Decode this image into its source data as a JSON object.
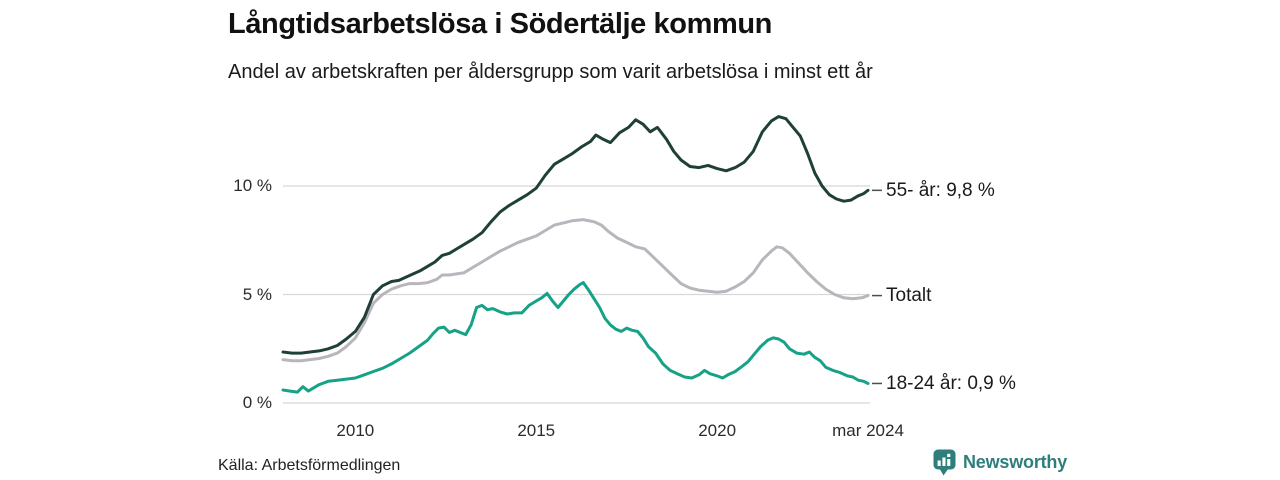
{
  "footer": {
    "source": "Källa: Arbetsförmedlingen",
    "brand": "Newsworthy",
    "logo_icon": "newsworthy-bars-bubble-icon"
  },
  "colors": {
    "grid": "#d8d8d8",
    "leader_dash": "#4d4d4d",
    "text": "#1a1a1a",
    "brand_teal": "#2e7e7c",
    "series_55": "#1f4038",
    "series_total": "#b8b6bc",
    "series_18_24": "#16a287"
  },
  "chart_data": {
    "type": "line",
    "title": "Långtidsarbetslösa i Södertälje kommun",
    "subtitle": "Andel av arbetskraften per åldersgrupp som varit arbetslösa i minst ett år",
    "legend_position": "right-end-labels",
    "x_axis": {
      "range": [
        2008,
        2024.17
      ],
      "ticks": [
        {
          "x": 2010,
          "label": "2010"
        },
        {
          "x": 2015,
          "label": "2015"
        },
        {
          "x": 2020,
          "label": "2020"
        },
        {
          "x": 2024.17,
          "label": "mar 2024"
        }
      ]
    },
    "y_axis": {
      "unit": "%",
      "range": [
        0,
        13.5
      ],
      "grid": true,
      "ticks": [
        {
          "v": 0,
          "label": "0 %"
        },
        {
          "v": 5,
          "label": "5 %"
        },
        {
          "v": 10,
          "label": "10 %"
        }
      ]
    },
    "series": [
      {
        "name": "Totalt",
        "end_label": "Totalt",
        "color": "#b8b6bc",
        "points": [
          [
            2008,
            2.0
          ],
          [
            2008.25,
            1.95
          ],
          [
            2008.5,
            1.95
          ],
          [
            2008.75,
            2.0
          ],
          [
            2009,
            2.05
          ],
          [
            2009.25,
            2.15
          ],
          [
            2009.5,
            2.3
          ],
          [
            2009.75,
            2.6
          ],
          [
            2010,
            3.0
          ],
          [
            2010.25,
            3.7
          ],
          [
            2010.5,
            4.6
          ],
          [
            2010.75,
            5.0
          ],
          [
            2011,
            5.25
          ],
          [
            2011.25,
            5.4
          ],
          [
            2011.5,
            5.5
          ],
          [
            2011.75,
            5.5
          ],
          [
            2012,
            5.55
          ],
          [
            2012.25,
            5.7
          ],
          [
            2012.4,
            5.9
          ],
          [
            2012.6,
            5.9
          ],
          [
            2012.8,
            5.95
          ],
          [
            2013,
            6.0
          ],
          [
            2013.25,
            6.25
          ],
          [
            2013.5,
            6.5
          ],
          [
            2013.75,
            6.75
          ],
          [
            2014,
            7.0
          ],
          [
            2014.25,
            7.2
          ],
          [
            2014.5,
            7.4
          ],
          [
            2014.75,
            7.55
          ],
          [
            2015,
            7.7
          ],
          [
            2015.25,
            7.95
          ],
          [
            2015.5,
            8.2
          ],
          [
            2015.75,
            8.3
          ],
          [
            2016,
            8.4
          ],
          [
            2016.3,
            8.45
          ],
          [
            2016.6,
            8.35
          ],
          [
            2016.8,
            8.2
          ],
          [
            2017,
            7.9
          ],
          [
            2017.25,
            7.6
          ],
          [
            2017.5,
            7.4
          ],
          [
            2017.75,
            7.2
          ],
          [
            2018,
            7.1
          ],
          [
            2018.25,
            6.7
          ],
          [
            2018.5,
            6.3
          ],
          [
            2018.75,
            5.9
          ],
          [
            2019,
            5.5
          ],
          [
            2019.25,
            5.3
          ],
          [
            2019.5,
            5.2
          ],
          [
            2019.75,
            5.15
          ],
          [
            2020,
            5.1
          ],
          [
            2020.25,
            5.15
          ],
          [
            2020.5,
            5.35
          ],
          [
            2020.75,
            5.6
          ],
          [
            2021,
            6.0
          ],
          [
            2021.25,
            6.6
          ],
          [
            2021.5,
            7.0
          ],
          [
            2021.65,
            7.2
          ],
          [
            2021.8,
            7.15
          ],
          [
            2022,
            6.9
          ],
          [
            2022.25,
            6.45
          ],
          [
            2022.5,
            6.0
          ],
          [
            2022.75,
            5.6
          ],
          [
            2023,
            5.25
          ],
          [
            2023.25,
            5.0
          ],
          [
            2023.5,
            4.85
          ],
          [
            2023.75,
            4.8
          ],
          [
            2024,
            4.85
          ],
          [
            2024.17,
            4.95
          ]
        ]
      },
      {
        "name": "18-24 år",
        "end_label": "18-24 år: 0,9 %",
        "last_value": 0.9,
        "color": "#16a287",
        "points": [
          [
            2008,
            0.6
          ],
          [
            2008.2,
            0.55
          ],
          [
            2008.4,
            0.5
          ],
          [
            2008.55,
            0.75
          ],
          [
            2008.7,
            0.55
          ],
          [
            2009,
            0.85
          ],
          [
            2009.25,
            1.0
          ],
          [
            2009.5,
            1.05
          ],
          [
            2009.75,
            1.1
          ],
          [
            2010,
            1.15
          ],
          [
            2010.25,
            1.3
          ],
          [
            2010.5,
            1.45
          ],
          [
            2010.75,
            1.6
          ],
          [
            2011,
            1.8
          ],
          [
            2011.25,
            2.05
          ],
          [
            2011.5,
            2.3
          ],
          [
            2011.75,
            2.6
          ],
          [
            2012,
            2.9
          ],
          [
            2012.15,
            3.2
          ],
          [
            2012.3,
            3.45
          ],
          [
            2012.45,
            3.5
          ],
          [
            2012.6,
            3.25
          ],
          [
            2012.75,
            3.35
          ],
          [
            2012.9,
            3.25
          ],
          [
            2013.05,
            3.15
          ],
          [
            2013.2,
            3.6
          ],
          [
            2013.35,
            4.4
          ],
          [
            2013.5,
            4.5
          ],
          [
            2013.65,
            4.3
          ],
          [
            2013.8,
            4.35
          ],
          [
            2014,
            4.2
          ],
          [
            2014.2,
            4.1
          ],
          [
            2014.4,
            4.15
          ],
          [
            2014.6,
            4.15
          ],
          [
            2014.8,
            4.5
          ],
          [
            2015,
            4.7
          ],
          [
            2015.15,
            4.85
          ],
          [
            2015.3,
            5.05
          ],
          [
            2015.45,
            4.7
          ],
          [
            2015.6,
            4.4
          ],
          [
            2015.75,
            4.7
          ],
          [
            2015.9,
            5.0
          ],
          [
            2016.05,
            5.25
          ],
          [
            2016.2,
            5.45
          ],
          [
            2016.3,
            5.55
          ],
          [
            2016.45,
            5.2
          ],
          [
            2016.6,
            4.8
          ],
          [
            2016.75,
            4.4
          ],
          [
            2016.9,
            3.9
          ],
          [
            2017.05,
            3.6
          ],
          [
            2017.2,
            3.4
          ],
          [
            2017.35,
            3.3
          ],
          [
            2017.5,
            3.45
          ],
          [
            2017.65,
            3.35
          ],
          [
            2017.8,
            3.3
          ],
          [
            2017.95,
            3.0
          ],
          [
            2018.1,
            2.6
          ],
          [
            2018.3,
            2.3
          ],
          [
            2018.5,
            1.8
          ],
          [
            2018.7,
            1.5
          ],
          [
            2018.9,
            1.35
          ],
          [
            2019.1,
            1.2
          ],
          [
            2019.3,
            1.15
          ],
          [
            2019.5,
            1.3
          ],
          [
            2019.65,
            1.5
          ],
          [
            2019.8,
            1.35
          ],
          [
            2020,
            1.25
          ],
          [
            2020.15,
            1.15
          ],
          [
            2020.3,
            1.3
          ],
          [
            2020.5,
            1.45
          ],
          [
            2020.7,
            1.7
          ],
          [
            2020.85,
            1.9
          ],
          [
            2021,
            2.2
          ],
          [
            2021.2,
            2.6
          ],
          [
            2021.4,
            2.9
          ],
          [
            2021.55,
            3.0
          ],
          [
            2021.7,
            2.95
          ],
          [
            2021.85,
            2.8
          ],
          [
            2022,
            2.5
          ],
          [
            2022.2,
            2.3
          ],
          [
            2022.4,
            2.25
          ],
          [
            2022.55,
            2.35
          ],
          [
            2022.7,
            2.1
          ],
          [
            2022.85,
            1.95
          ],
          [
            2023,
            1.65
          ],
          [
            2023.2,
            1.5
          ],
          [
            2023.4,
            1.4
          ],
          [
            2023.6,
            1.25
          ],
          [
            2023.75,
            1.2
          ],
          [
            2023.9,
            1.05
          ],
          [
            2024.05,
            1.0
          ],
          [
            2024.17,
            0.9
          ]
        ]
      },
      {
        "name": "55- år",
        "end_label": "55- år: 9,8 %",
        "last_value": 9.8,
        "color": "#1f4038",
        "points": [
          [
            2008,
            2.35
          ],
          [
            2008.25,
            2.3
          ],
          [
            2008.5,
            2.3
          ],
          [
            2008.75,
            2.35
          ],
          [
            2009,
            2.4
          ],
          [
            2009.25,
            2.5
          ],
          [
            2009.5,
            2.65
          ],
          [
            2009.75,
            2.95
          ],
          [
            2010,
            3.3
          ],
          [
            2010.25,
            3.95
          ],
          [
            2010.5,
            5.0
          ],
          [
            2010.75,
            5.4
          ],
          [
            2011,
            5.6
          ],
          [
            2011.2,
            5.65
          ],
          [
            2011.4,
            5.8
          ],
          [
            2011.6,
            5.95
          ],
          [
            2011.8,
            6.1
          ],
          [
            2012,
            6.3
          ],
          [
            2012.2,
            6.5
          ],
          [
            2012.4,
            6.8
          ],
          [
            2012.6,
            6.9
          ],
          [
            2012.8,
            7.1
          ],
          [
            2013,
            7.3
          ],
          [
            2013.25,
            7.55
          ],
          [
            2013.5,
            7.85
          ],
          [
            2013.75,
            8.35
          ],
          [
            2014,
            8.8
          ],
          [
            2014.25,
            9.1
          ],
          [
            2014.5,
            9.35
          ],
          [
            2014.75,
            9.6
          ],
          [
            2015,
            9.9
          ],
          [
            2015.25,
            10.5
          ],
          [
            2015.5,
            11.0
          ],
          [
            2015.75,
            11.25
          ],
          [
            2016,
            11.5
          ],
          [
            2016.25,
            11.8
          ],
          [
            2016.5,
            12.05
          ],
          [
            2016.65,
            12.35
          ],
          [
            2016.85,
            12.15
          ],
          [
            2017.05,
            12.0
          ],
          [
            2017.3,
            12.45
          ],
          [
            2017.55,
            12.7
          ],
          [
            2017.75,
            13.05
          ],
          [
            2017.95,
            12.85
          ],
          [
            2018.15,
            12.5
          ],
          [
            2018.35,
            12.7
          ],
          [
            2018.6,
            12.15
          ],
          [
            2018.8,
            11.6
          ],
          [
            2019,
            11.2
          ],
          [
            2019.25,
            10.9
          ],
          [
            2019.5,
            10.85
          ],
          [
            2019.75,
            10.95
          ],
          [
            2020,
            10.8
          ],
          [
            2020.25,
            10.7
          ],
          [
            2020.5,
            10.85
          ],
          [
            2020.75,
            11.1
          ],
          [
            2021,
            11.6
          ],
          [
            2021.25,
            12.5
          ],
          [
            2021.5,
            13.0
          ],
          [
            2021.7,
            13.2
          ],
          [
            2021.9,
            13.1
          ],
          [
            2022.1,
            12.7
          ],
          [
            2022.3,
            12.3
          ],
          [
            2022.5,
            11.5
          ],
          [
            2022.7,
            10.6
          ],
          [
            2022.9,
            10.0
          ],
          [
            2023.1,
            9.6
          ],
          [
            2023.3,
            9.4
          ],
          [
            2023.5,
            9.3
          ],
          [
            2023.7,
            9.35
          ],
          [
            2023.9,
            9.55
          ],
          [
            2024.05,
            9.65
          ],
          [
            2024.17,
            9.8
          ]
        ]
      }
    ]
  }
}
